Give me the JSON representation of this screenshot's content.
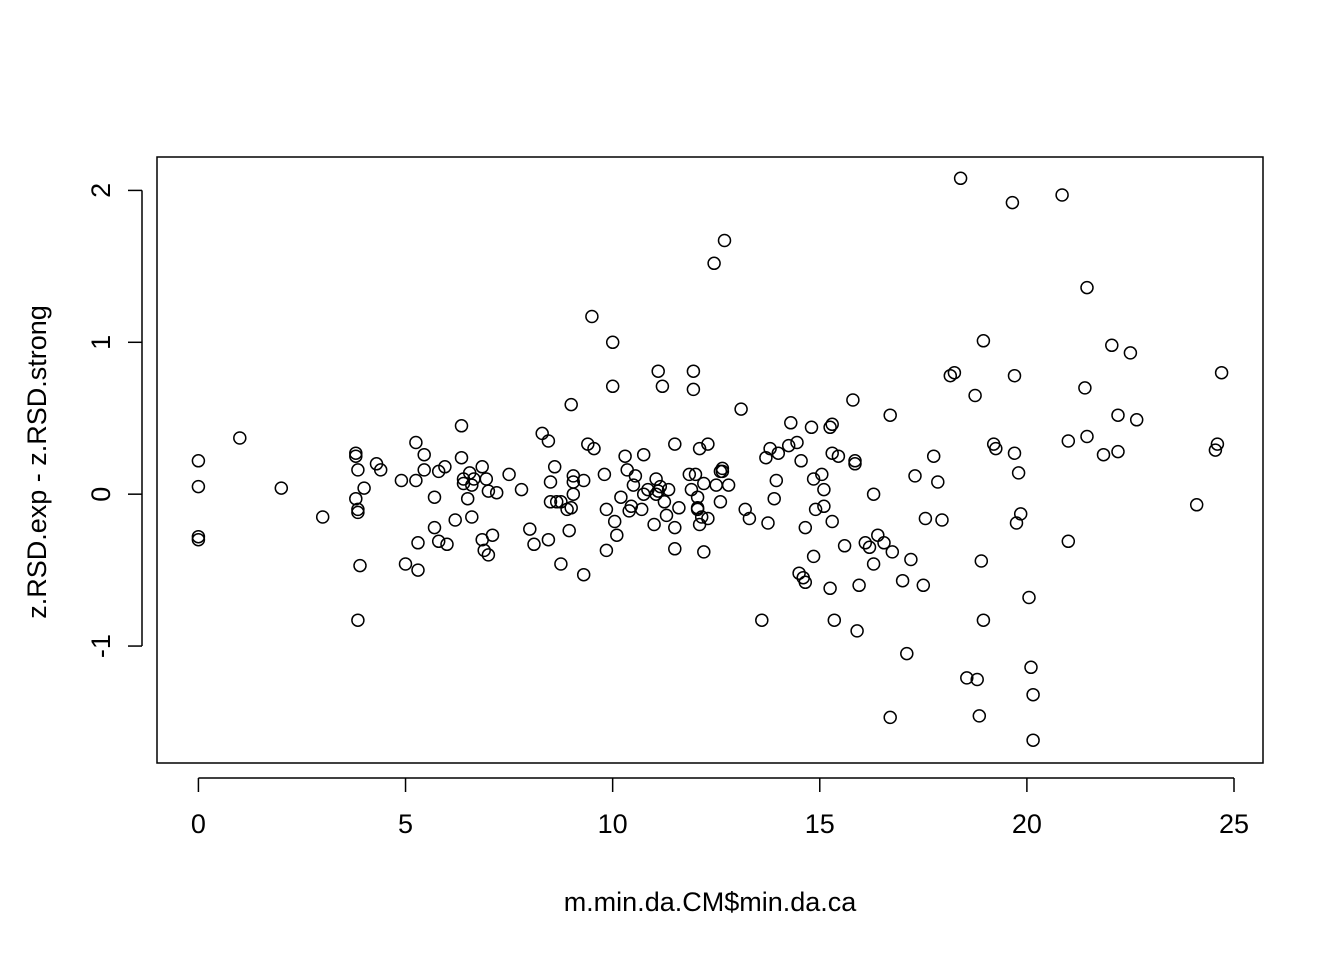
{
  "chart_data": {
    "type": "scatter",
    "title": "",
    "xlabel": "m.min.da.CM$min.da.ca",
    "ylabel": "z.RSD.exp - z.RSD.strong",
    "xlim": [
      -1,
      25.7
    ],
    "ylim": [
      -1.77,
      2.22
    ],
    "x_ticks": [
      0,
      5,
      10,
      15,
      20,
      25
    ],
    "y_ticks": [
      -1,
      0,
      1,
      2
    ],
    "x_tick_labels": [
      "0",
      "5",
      "10",
      "15",
      "20",
      "25"
    ],
    "y_tick_labels": [
      "-1",
      "0",
      "1",
      "2"
    ],
    "grid": false,
    "marker": "open-circle",
    "marker_color": "#000000",
    "points": [
      [
        0,
        0.22
      ],
      [
        0,
        0.05
      ],
      [
        0,
        -0.28
      ],
      [
        0,
        -0.3
      ],
      [
        1,
        0.37
      ],
      [
        2,
        0.04
      ],
      [
        3,
        -0.15
      ],
      [
        3.8,
        0.27
      ],
      [
        3.8,
        0.25
      ],
      [
        3.8,
        -0.03
      ],
      [
        3.85,
        0.16
      ],
      [
        3.85,
        -0.1
      ],
      [
        3.85,
        -0.12
      ],
      [
        3.9,
        -0.47
      ],
      [
        3.85,
        -0.83
      ],
      [
        4,
        0.04
      ],
      [
        4.3,
        0.2
      ],
      [
        4.4,
        0.16
      ],
      [
        4.9,
        0.09
      ],
      [
        5,
        -0.46
      ],
      [
        5.25,
        0.34
      ],
      [
        5.25,
        0.09
      ],
      [
        5.3,
        -0.32
      ],
      [
        5.3,
        -0.5
      ],
      [
        5.45,
        0.26
      ],
      [
        5.45,
        0.16
      ],
      [
        5.7,
        -0.02
      ],
      [
        5.7,
        -0.22
      ],
      [
        5.8,
        0.15
      ],
      [
        5.8,
        -0.31
      ],
      [
        5.95,
        0.18
      ],
      [
        6,
        -0.33
      ],
      [
        6.2,
        -0.17
      ],
      [
        6.35,
        0.45
      ],
      [
        6.35,
        0.24
      ],
      [
        6.4,
        0.1
      ],
      [
        6.4,
        0.07
      ],
      [
        6.5,
        -0.03
      ],
      [
        6.55,
        0.14
      ],
      [
        6.6,
        -0.15
      ],
      [
        6.6,
        0.06
      ],
      [
        6.65,
        0.1
      ],
      [
        6.85,
        0.18
      ],
      [
        6.85,
        -0.3
      ],
      [
        6.9,
        -0.37
      ],
      [
        6.95,
        0.1
      ],
      [
        7,
        -0.4
      ],
      [
        7,
        0.02
      ],
      [
        7.1,
        -0.27
      ],
      [
        7.2,
        0.01
      ],
      [
        7.5,
        0.13
      ],
      [
        7.8,
        0.03
      ],
      [
        8,
        -0.23
      ],
      [
        8.1,
        -0.33
      ],
      [
        8.3,
        0.4
      ],
      [
        8.45,
        0.35
      ],
      [
        8.45,
        -0.3
      ],
      [
        8.5,
        0.08
      ],
      [
        8.5,
        -0.05
      ],
      [
        8.6,
        0.18
      ],
      [
        8.65,
        -0.05
      ],
      [
        8.75,
        -0.05
      ],
      [
        8.75,
        -0.46
      ],
      [
        8.9,
        -0.1
      ],
      [
        8.95,
        -0.24
      ],
      [
        9,
        0.59
      ],
      [
        9,
        -0.09
      ],
      [
        9.05,
        0.12
      ],
      [
        9.05,
        0.08
      ],
      [
        9.05,
        0
      ],
      [
        9.3,
        0.09
      ],
      [
        9.3,
        -0.53
      ],
      [
        9.4,
        0.33
      ],
      [
        9.5,
        1.17
      ],
      [
        9.55,
        0.3
      ],
      [
        9.8,
        0.13
      ],
      [
        9.85,
        -0.1
      ],
      [
        9.85,
        -0.37
      ],
      [
        10,
        1
      ],
      [
        10,
        0.71
      ],
      [
        10.05,
        -0.18
      ],
      [
        10.1,
        -0.27
      ],
      [
        10.2,
        -0.02
      ],
      [
        10.3,
        0.25
      ],
      [
        10.35,
        0.16
      ],
      [
        10.4,
        -0.11
      ],
      [
        10.45,
        -0.08
      ],
      [
        10.5,
        0.06
      ],
      [
        10.55,
        0.12
      ],
      [
        10.7,
        -0.1
      ],
      [
        10.75,
        0
      ],
      [
        10.75,
        0.26
      ],
      [
        10.85,
        0.03
      ],
      [
        11,
        -0.2
      ],
      [
        11.05,
        0.1
      ],
      [
        11.05,
        0
      ],
      [
        11.1,
        0.81
      ],
      [
        11.1,
        0.02
      ],
      [
        11.15,
        0.05
      ],
      [
        11.2,
        0.71
      ],
      [
        11.25,
        -0.05
      ],
      [
        11.3,
        -0.14
      ],
      [
        11.35,
        0.03
      ],
      [
        11.5,
        0.33
      ],
      [
        11.5,
        -0.22
      ],
      [
        11.5,
        -0.36
      ],
      [
        11.6,
        -0.09
      ],
      [
        11.85,
        0.13
      ],
      [
        11.9,
        0.03
      ],
      [
        11.95,
        0.81
      ],
      [
        11.95,
        0.69
      ],
      [
        12,
        0.13
      ],
      [
        12.05,
        -0.09
      ],
      [
        12.05,
        -0.1
      ],
      [
        12.05,
        -0.02
      ],
      [
        12.1,
        -0.2
      ],
      [
        12.1,
        0.3
      ],
      [
        12.15,
        -0.15
      ],
      [
        12.2,
        0.07
      ],
      [
        12.2,
        -0.38
      ],
      [
        12.3,
        0.33
      ],
      [
        12.3,
        -0.16
      ],
      [
        12.45,
        1.52
      ],
      [
        12.5,
        0.06
      ],
      [
        12.6,
        -0.05
      ],
      [
        12.6,
        0.15
      ],
      [
        12.65,
        0.17
      ],
      [
        12.65,
        0.15
      ],
      [
        12.7,
        1.67
      ],
      [
        12.8,
        0.06
      ],
      [
        13.1,
        0.56
      ],
      [
        13.2,
        -0.1
      ],
      [
        13.3,
        -0.16
      ],
      [
        13.6,
        -0.83
      ],
      [
        13.7,
        0.24
      ],
      [
        13.75,
        -0.19
      ],
      [
        13.8,
        0.3
      ],
      [
        13.9,
        -0.03
      ],
      [
        13.95,
        0.09
      ],
      [
        14,
        0.27
      ],
      [
        14.25,
        0.32
      ],
      [
        14.3,
        0.47
      ],
      [
        14.45,
        0.34
      ],
      [
        14.5,
        -0.52
      ],
      [
        14.55,
        0.22
      ],
      [
        14.6,
        -0.55
      ],
      [
        14.65,
        -0.22
      ],
      [
        14.65,
        -0.58
      ],
      [
        14.8,
        0.44
      ],
      [
        14.85,
        -0.41
      ],
      [
        14.85,
        0.1
      ],
      [
        14.9,
        -0.1
      ],
      [
        15.05,
        0.13
      ],
      [
        15.1,
        0.03
      ],
      [
        15.1,
        -0.08
      ],
      [
        15.25,
        0.44
      ],
      [
        15.25,
        -0.62
      ],
      [
        15.3,
        0.46
      ],
      [
        15.3,
        0.27
      ],
      [
        15.3,
        -0.18
      ],
      [
        15.35,
        -0.83
      ],
      [
        15.45,
        0.25
      ],
      [
        15.6,
        -0.34
      ],
      [
        15.8,
        0.62
      ],
      [
        15.85,
        0.2
      ],
      [
        15.85,
        0.22
      ],
      [
        15.9,
        -0.9
      ],
      [
        15.95,
        -0.6
      ],
      [
        16.1,
        -0.32
      ],
      [
        16.2,
        -0.35
      ],
      [
        16.3,
        0
      ],
      [
        16.3,
        -0.46
      ],
      [
        16.4,
        -0.27
      ],
      [
        16.55,
        -0.32
      ],
      [
        16.7,
        0.52
      ],
      [
        16.7,
        -1.47
      ],
      [
        16.75,
        -0.38
      ],
      [
        17,
        -0.57
      ],
      [
        17.1,
        -1.05
      ],
      [
        17.2,
        -0.43
      ],
      [
        17.3,
        0.12
      ],
      [
        17.5,
        -0.6
      ],
      [
        17.55,
        -0.16
      ],
      [
        17.75,
        0.25
      ],
      [
        17.85,
        0.08
      ],
      [
        17.95,
        -0.17
      ],
      [
        18.15,
        0.78
      ],
      [
        18.25,
        0.8
      ],
      [
        18.4,
        2.08
      ],
      [
        18.55,
        -1.21
      ],
      [
        18.75,
        0.65
      ],
      [
        18.8,
        -1.22
      ],
      [
        18.85,
        -1.46
      ],
      [
        18.9,
        -0.44
      ],
      [
        18.95,
        -0.83
      ],
      [
        18.95,
        1.01
      ],
      [
        19.2,
        0.33
      ],
      [
        19.25,
        0.3
      ],
      [
        19.65,
        1.92
      ],
      [
        19.7,
        0.78
      ],
      [
        19.7,
        0.27
      ],
      [
        19.75,
        -0.19
      ],
      [
        19.8,
        0.14
      ],
      [
        19.85,
        -0.13
      ],
      [
        20.05,
        -0.68
      ],
      [
        20.1,
        -1.14
      ],
      [
        20.15,
        -1.32
      ],
      [
        20.15,
        -1.62
      ],
      [
        20.85,
        1.97
      ],
      [
        21,
        0.35
      ],
      [
        21,
        -0.31
      ],
      [
        21.4,
        0.7
      ],
      [
        21.45,
        0.38
      ],
      [
        21.45,
        1.36
      ],
      [
        21.85,
        0.26
      ],
      [
        22.05,
        0.98
      ],
      [
        22.2,
        0.52
      ],
      [
        22.2,
        0.28
      ],
      [
        22.5,
        0.93
      ],
      [
        22.65,
        0.49
      ],
      [
        24.1,
        -0.07
      ],
      [
        24.55,
        0.29
      ],
      [
        24.6,
        0.33
      ],
      [
        24.7,
        0.8
      ]
    ]
  }
}
